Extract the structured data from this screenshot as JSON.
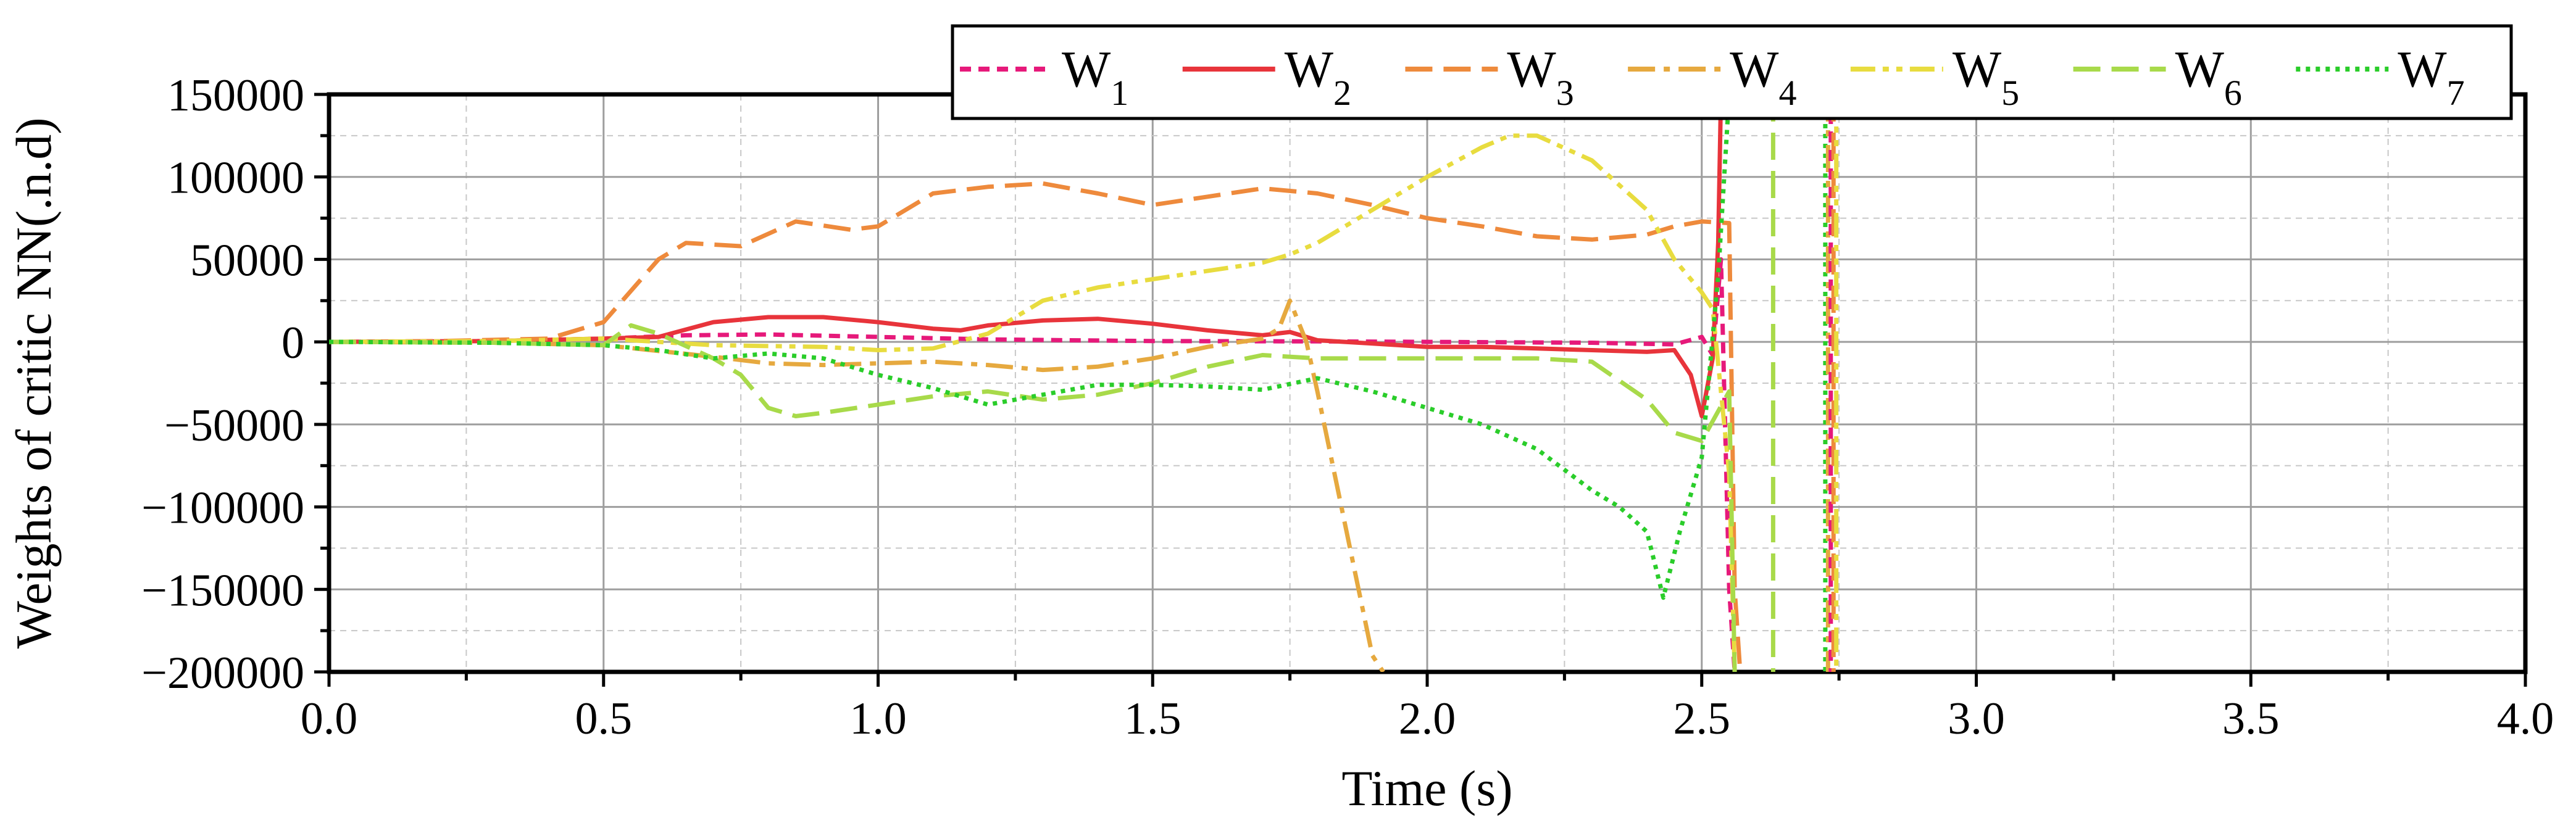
{
  "chart_data": {
    "type": "line",
    "title": "",
    "xlabel": "Time (s)",
    "ylabel": "Weights of critic NN(.n.d)",
    "xlim": [
      0,
      4
    ],
    "ylim": [
      -200000,
      150000
    ],
    "xticks": [
      "0.0",
      "0.5",
      "1.0",
      "1.5",
      "2.0",
      "2.5",
      "3.0",
      "3.5",
      "4.0"
    ],
    "yticks": [
      "150000",
      "100000",
      "50000",
      "0",
      "−50000",
      "−100000",
      "−150000",
      "−200000"
    ],
    "grid": true,
    "legend_position": "top",
    "series": [
      {
        "name": "W",
        "sub": "1",
        "color": "#e6197a",
        "dash": "short-dash",
        "points": [
          [
            0,
            0
          ],
          [
            0.3,
            500
          ],
          [
            0.5,
            2000
          ],
          [
            0.65,
            4000
          ],
          [
            0.8,
            4500
          ],
          [
            1.0,
            3000
          ],
          [
            1.2,
            1500
          ],
          [
            1.5,
            500
          ],
          [
            1.8,
            300
          ],
          [
            2.0,
            0
          ],
          [
            2.3,
            -500
          ],
          [
            2.45,
            -1500
          ],
          [
            2.5,
            3000
          ],
          [
            2.52,
            -8000
          ],
          [
            2.535,
            50000
          ],
          [
            2.55,
            -150000
          ],
          [
            2.56,
            -200000
          ]
        ]
      },
      {
        "name": "W",
        "sub": "2",
        "color": "#e8343b",
        "dash": "solid",
        "points": [
          [
            0,
            0
          ],
          [
            0.3,
            500
          ],
          [
            0.5,
            2000
          ],
          [
            0.6,
            3000
          ],
          [
            0.7,
            12000
          ],
          [
            0.8,
            15000
          ],
          [
            0.9,
            15000
          ],
          [
            1.0,
            12000
          ],
          [
            1.1,
            8000
          ],
          [
            1.15,
            7000
          ],
          [
            1.2,
            10000
          ],
          [
            1.3,
            13000
          ],
          [
            1.4,
            14000
          ],
          [
            1.5,
            11000
          ],
          [
            1.6,
            7000
          ],
          [
            1.7,
            4000
          ],
          [
            1.75,
            6000
          ],
          [
            1.8,
            1000
          ],
          [
            1.9,
            -1000
          ],
          [
            2.0,
            -3000
          ],
          [
            2.1,
            -3000
          ],
          [
            2.2,
            -4000
          ],
          [
            2.3,
            -5000
          ],
          [
            2.4,
            -6000
          ],
          [
            2.45,
            -5000
          ],
          [
            2.48,
            -20000
          ],
          [
            2.5,
            -45000
          ],
          [
            2.52,
            -10000
          ],
          [
            2.53,
            60000
          ],
          [
            2.535,
            150000
          ]
        ]
      },
      {
        "name": "W",
        "sub": "3",
        "color": "#ee8a3c",
        "dash": "long-dash",
        "points": [
          [
            0,
            0
          ],
          [
            0.2,
            500
          ],
          [
            0.4,
            2000
          ],
          [
            0.5,
            12000
          ],
          [
            0.6,
            50000
          ],
          [
            0.65,
            60000
          ],
          [
            0.75,
            58000
          ],
          [
            0.85,
            73000
          ],
          [
            0.95,
            68000
          ],
          [
            1.0,
            70000
          ],
          [
            1.1,
            90000
          ],
          [
            1.2,
            94000
          ],
          [
            1.3,
            96000
          ],
          [
            1.4,
            90000
          ],
          [
            1.5,
            83000
          ],
          [
            1.6,
            88000
          ],
          [
            1.7,
            93000
          ],
          [
            1.8,
            90000
          ],
          [
            1.9,
            83000
          ],
          [
            2.0,
            75000
          ],
          [
            2.1,
            70000
          ],
          [
            2.2,
            64000
          ],
          [
            2.3,
            62000
          ],
          [
            2.4,
            65000
          ],
          [
            2.45,
            70000
          ],
          [
            2.5,
            73000
          ],
          [
            2.55,
            72000
          ],
          [
            2.56,
            -150000
          ],
          [
            2.57,
            -200000
          ]
        ]
      },
      {
        "name": "W",
        "sub": "4",
        "color": "#e6a93f",
        "dash": "dash-dot",
        "points": [
          [
            0,
            0
          ],
          [
            0.3,
            -500
          ],
          [
            0.5,
            -2000
          ],
          [
            0.7,
            -9000
          ],
          [
            0.8,
            -13000
          ],
          [
            0.9,
            -14000
          ],
          [
            1.0,
            -13000
          ],
          [
            1.1,
            -12000
          ],
          [
            1.2,
            -14000
          ],
          [
            1.3,
            -17000
          ],
          [
            1.4,
            -15000
          ],
          [
            1.5,
            -10000
          ],
          [
            1.6,
            -3000
          ],
          [
            1.7,
            2000
          ],
          [
            1.73,
            8000
          ],
          [
            1.75,
            25000
          ],
          [
            1.78,
            0
          ],
          [
            1.8,
            -30000
          ],
          [
            1.85,
            -110000
          ],
          [
            1.9,
            -190000
          ],
          [
            1.92,
            -200000
          ]
        ]
      },
      {
        "name": "W",
        "sub": "5",
        "color": "#e8dc3f",
        "dash": "dash-dot-dot",
        "points": [
          [
            0,
            0
          ],
          [
            0.3,
            500
          ],
          [
            0.5,
            2000
          ],
          [
            0.7,
            -2000
          ],
          [
            0.9,
            -3000
          ],
          [
            1.0,
            -5000
          ],
          [
            1.1,
            -4000
          ],
          [
            1.2,
            5000
          ],
          [
            1.3,
            25000
          ],
          [
            1.4,
            33000
          ],
          [
            1.5,
            38000
          ],
          [
            1.6,
            43000
          ],
          [
            1.7,
            48000
          ],
          [
            1.75,
            53000
          ],
          [
            1.8,
            60000
          ],
          [
            1.9,
            80000
          ],
          [
            2.0,
            100000
          ],
          [
            2.1,
            118000
          ],
          [
            2.15,
            125000
          ],
          [
            2.2,
            125000
          ],
          [
            2.3,
            110000
          ],
          [
            2.4,
            80000
          ],
          [
            2.45,
            50000
          ],
          [
            2.5,
            30000
          ],
          [
            2.52,
            20000
          ],
          [
            2.55,
            -80000
          ],
          [
            2.56,
            -200000
          ]
        ]
      },
      {
        "name": "W",
        "sub": "6",
        "color": "#a8da4a",
        "dash": "long-dash",
        "points": [
          [
            0,
            0
          ],
          [
            0.3,
            -500
          ],
          [
            0.5,
            -2000
          ],
          [
            0.55,
            10000
          ],
          [
            0.6,
            5000
          ],
          [
            0.7,
            -10000
          ],
          [
            0.75,
            -20000
          ],
          [
            0.8,
            -40000
          ],
          [
            0.85,
            -45000
          ],
          [
            0.9,
            -43000
          ],
          [
            1.0,
            -38000
          ],
          [
            1.1,
            -33000
          ],
          [
            1.2,
            -30000
          ],
          [
            1.3,
            -35000
          ],
          [
            1.4,
            -32000
          ],
          [
            1.5,
            -25000
          ],
          [
            1.6,
            -15000
          ],
          [
            1.7,
            -8000
          ],
          [
            1.8,
            -10000
          ],
          [
            1.9,
            -10000
          ],
          [
            2.0,
            -10000
          ],
          [
            2.1,
            -10000
          ],
          [
            2.2,
            -10000
          ],
          [
            2.3,
            -12000
          ],
          [
            2.4,
            -35000
          ],
          [
            2.45,
            -55000
          ],
          [
            2.5,
            -60000
          ],
          [
            2.55,
            -30000
          ],
          [
            2.56,
            -200000
          ]
        ]
      },
      {
        "name": "W",
        "sub": "7",
        "color": "#2acd2a",
        "dash": "dotted",
        "points": [
          [
            0,
            0
          ],
          [
            0.3,
            -500
          ],
          [
            0.5,
            -2000
          ],
          [
            0.6,
            -5000
          ],
          [
            0.7,
            -10000
          ],
          [
            0.8,
            -7000
          ],
          [
            0.9,
            -10000
          ],
          [
            1.0,
            -20000
          ],
          [
            1.1,
            -28000
          ],
          [
            1.2,
            -38000
          ],
          [
            1.3,
            -32000
          ],
          [
            1.4,
            -26000
          ],
          [
            1.5,
            -26000
          ],
          [
            1.6,
            -27000
          ],
          [
            1.7,
            -29000
          ],
          [
            1.8,
            -22000
          ],
          [
            1.9,
            -30000
          ],
          [
            2.0,
            -40000
          ],
          [
            2.1,
            -50000
          ],
          [
            2.2,
            -65000
          ],
          [
            2.3,
            -90000
          ],
          [
            2.35,
            -100000
          ],
          [
            2.4,
            -115000
          ],
          [
            2.43,
            -155000
          ],
          [
            2.46,
            -115000
          ],
          [
            2.5,
            -70000
          ],
          [
            2.53,
            40000
          ],
          [
            2.55,
            150000
          ]
        ]
      }
    ],
    "vertical_lines": [
      {
        "x": 2.63,
        "color": "#a8da4a",
        "dash": "long-dash"
      },
      {
        "x": 2.725,
        "color": "#2acd2a",
        "dash": "dotted"
      },
      {
        "x": 2.73,
        "color": "#e6a93f",
        "dash": "dash-dot"
      },
      {
        "x": 2.735,
        "color": "#e6197a",
        "dash": "short-dash"
      },
      {
        "x": 2.74,
        "color": "#ee8a3c",
        "dash": "long-dash"
      },
      {
        "x": 2.745,
        "color": "#e8dc3f",
        "dash": "dash-dot-dot"
      }
    ]
  }
}
